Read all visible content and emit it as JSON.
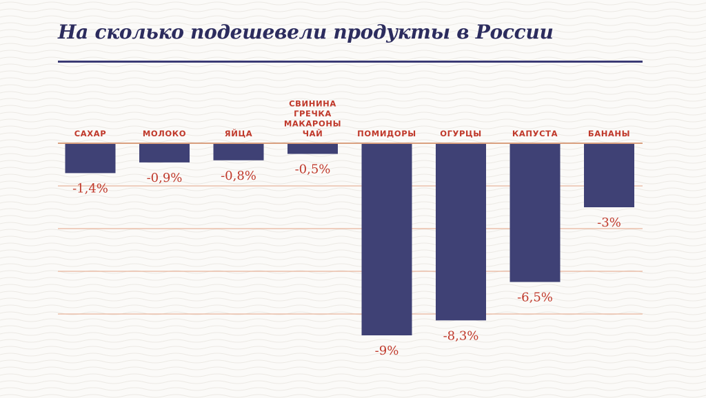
{
  "colors": {
    "background": "#fbfaf8",
    "title": "#2c2c5e",
    "bar": "#3f4175",
    "label": "#c0392b",
    "gridline": "#e8b59a",
    "zero_line": "#d9a07f"
  },
  "chart_data": {
    "type": "bar",
    "title": "На сколько подешевели продукты в России",
    "xlabel": "",
    "ylabel": "",
    "ylim": [
      -9.6,
      0
    ],
    "gridlines": [
      0,
      -2,
      -4,
      -6,
      -8
    ],
    "grid": true,
    "legend": "none",
    "categories": [
      [
        "САХАР"
      ],
      [
        "МОЛОКО"
      ],
      [
        "ЯЙЦА"
      ],
      [
        "СВИНИНА",
        "ГРЕЧКА",
        "МАКАРОНЫ",
        "ЧАЙ"
      ],
      [
        "ПОМИДОРЫ"
      ],
      [
        "ОГУРЦЫ"
      ],
      [
        "КАПУСТА"
      ],
      [
        "БАНАНЫ"
      ]
    ],
    "values": [
      -1.4,
      -0.9,
      -0.8,
      -0.5,
      -9,
      -8.3,
      -6.5,
      -3
    ],
    "value_labels": [
      "-1,4%",
      "-0,9%",
      "-0,8%",
      "-0,5%",
      "-9%",
      "-8,3%",
      "-6,5%",
      "-3%"
    ]
  }
}
